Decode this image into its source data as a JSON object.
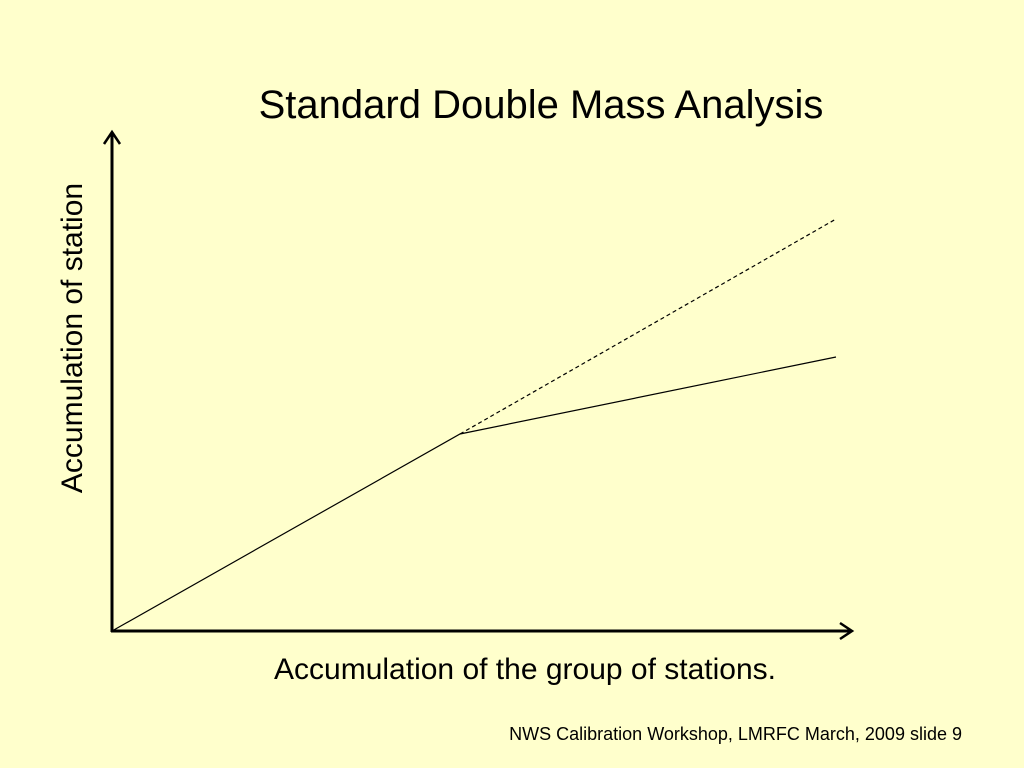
{
  "title": "Standard Double Mass Analysis",
  "y_axis_label": "Accumulation of station",
  "x_axis_label": "Accumulation of the group of stations.",
  "footer": "NWS Calibration Workshop, LMRFC March, 2009 slide 9"
}
